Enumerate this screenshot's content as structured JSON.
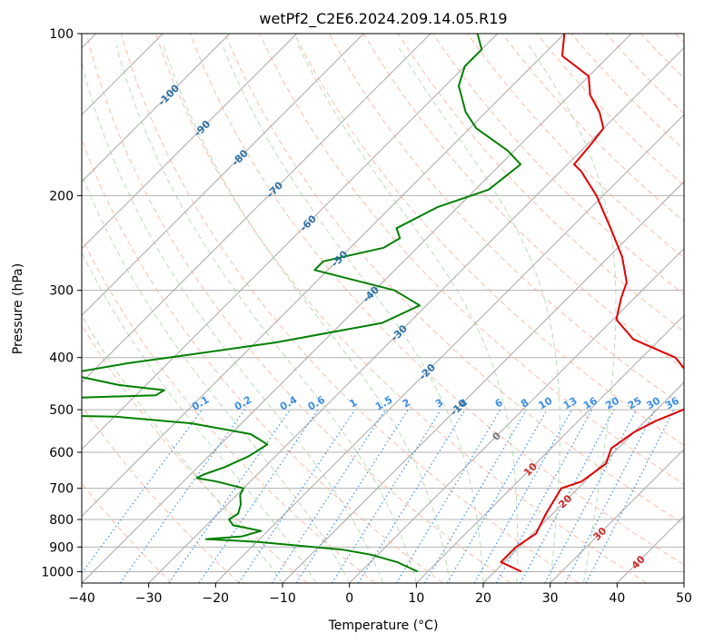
{
  "chart_data": {
    "type": "line",
    "title": "wetPf2_C2E6.2024.209.14.05.R19",
    "xlabel": "Temperature (°C)",
    "ylabel": "Pressure (hPa)",
    "xlim": [
      -40,
      50
    ],
    "ylim": [
      1050,
      100
    ],
    "y_scale": "log",
    "grid": true,
    "x_ticks": [
      -40,
      -30,
      -20,
      -10,
      0,
      10,
      20,
      30,
      40,
      50
    ],
    "y_ticks": [
      100,
      200,
      300,
      400,
      500,
      600,
      700,
      800,
      900,
      1000
    ],
    "isotherm_labels": [
      "-100",
      "-90",
      "-80",
      "-70",
      "-60",
      "-50",
      "-40",
      "-30",
      "-20",
      "-10",
      "0",
      "10",
      "20",
      "30",
      "40"
    ],
    "mixing_ratio_labels": [
      "0.1",
      "0.2",
      "0.4",
      "0.6",
      "1",
      "1.5",
      "2",
      "3",
      "4",
      "6",
      "8",
      "10",
      "13",
      "16",
      "20",
      "25",
      "30",
      "36"
    ],
    "series": [
      {
        "color": "#e00000",
        "points": [
          [
            1000,
            24.0
          ],
          [
            960,
            19.5
          ],
          [
            900,
            19.5
          ],
          [
            850,
            20.5
          ],
          [
            780,
            19.0
          ],
          [
            700,
            17.5
          ],
          [
            680,
            19.5
          ],
          [
            630,
            20.5
          ],
          [
            590,
            19.0
          ],
          [
            550,
            20.0
          ],
          [
            525,
            21.5
          ],
          [
            500,
            24.0
          ],
          [
            470,
            24.0
          ],
          [
            440,
            21.0
          ],
          [
            400,
            15.0
          ],
          [
            370,
            6.0
          ],
          [
            340,
            0.5
          ],
          [
            310,
            -2.0
          ],
          [
            290,
            -3.5
          ],
          [
            260,
            -8.0
          ],
          [
            230,
            -14.0
          ],
          [
            200,
            -21.0
          ],
          [
            180,
            -27.0
          ],
          [
            175,
            -29.0
          ],
          [
            160,
            -29.5
          ],
          [
            150,
            -30.0
          ],
          [
            140,
            -33.0
          ],
          [
            130,
            -37.0
          ],
          [
            120,
            -40.0
          ],
          [
            110,
            -47.0
          ],
          [
            100,
            -50.0
          ]
        ]
      },
      {
        "color": "#008000",
        "points": [
          [
            1000,
            8.5
          ],
          [
            960,
            4.0
          ],
          [
            930,
            -1.0
          ],
          [
            910,
            -6.0
          ],
          [
            880,
            -20.0
          ],
          [
            870,
            -28.0
          ],
          [
            860,
            -23.0
          ],
          [
            840,
            -21.0
          ],
          [
            820,
            -26.0
          ],
          [
            800,
            -27.5
          ],
          [
            780,
            -27.0
          ],
          [
            750,
            -28.0
          ],
          [
            720,
            -29.5
          ],
          [
            700,
            -30.0
          ],
          [
            680,
            -35.0
          ],
          [
            670,
            -38.5
          ],
          [
            660,
            -38.0
          ],
          [
            640,
            -36.0
          ],
          [
            610,
            -34.0
          ],
          [
            580,
            -33.0
          ],
          [
            555,
            -37.0
          ],
          [
            530,
            -47.5
          ],
          [
            515,
            -60.0
          ],
          [
            510,
            -80.0
          ],
          [
            480,
            -80.0
          ],
          [
            470,
            -57.0
          ],
          [
            460,
            -56.5
          ],
          [
            450,
            -64.0
          ],
          [
            430,
            -73.0
          ],
          [
            425,
            -72.0
          ],
          [
            410,
            -66.0
          ],
          [
            395,
            -58.0
          ],
          [
            375,
            -47.0
          ],
          [
            345,
            -34.0
          ],
          [
            320,
            -31.0
          ],
          [
            300,
            -37.0
          ],
          [
            275,
            -52.0
          ],
          [
            265,
            -52.0
          ],
          [
            250,
            -45.0
          ],
          [
            240,
            -44.0
          ],
          [
            230,
            -46.0
          ],
          [
            210,
            -43.0
          ],
          [
            195,
            -38.0
          ],
          [
            175,
            -37.0
          ],
          [
            165,
            -41.0
          ],
          [
            150,
            -49.0
          ],
          [
            140,
            -53.0
          ],
          [
            125,
            -58.0
          ],
          [
            115,
            -60.0
          ],
          [
            107,
            -60.0
          ],
          [
            100,
            -63.0
          ]
        ]
      }
    ]
  }
}
